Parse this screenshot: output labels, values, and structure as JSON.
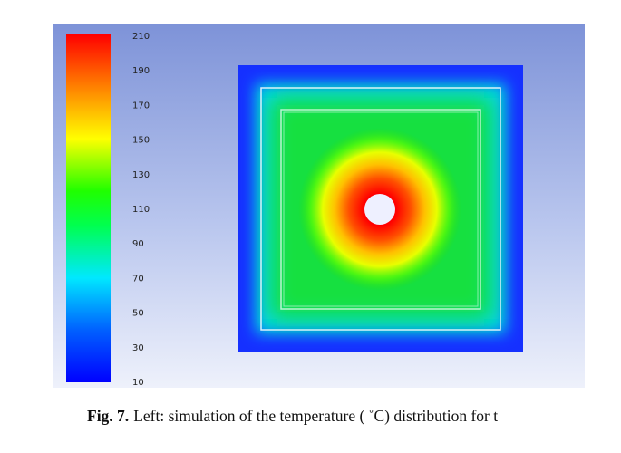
{
  "figure": {
    "colorbar": {
      "ticks": [
        10,
        30,
        50,
        70,
        90,
        110,
        130,
        150,
        170,
        190,
        210
      ]
    },
    "caption": {
      "label": "Fig. 7.",
      "text": "Left: simulation of the temperature ( ˚C) distribution for t"
    }
  }
}
